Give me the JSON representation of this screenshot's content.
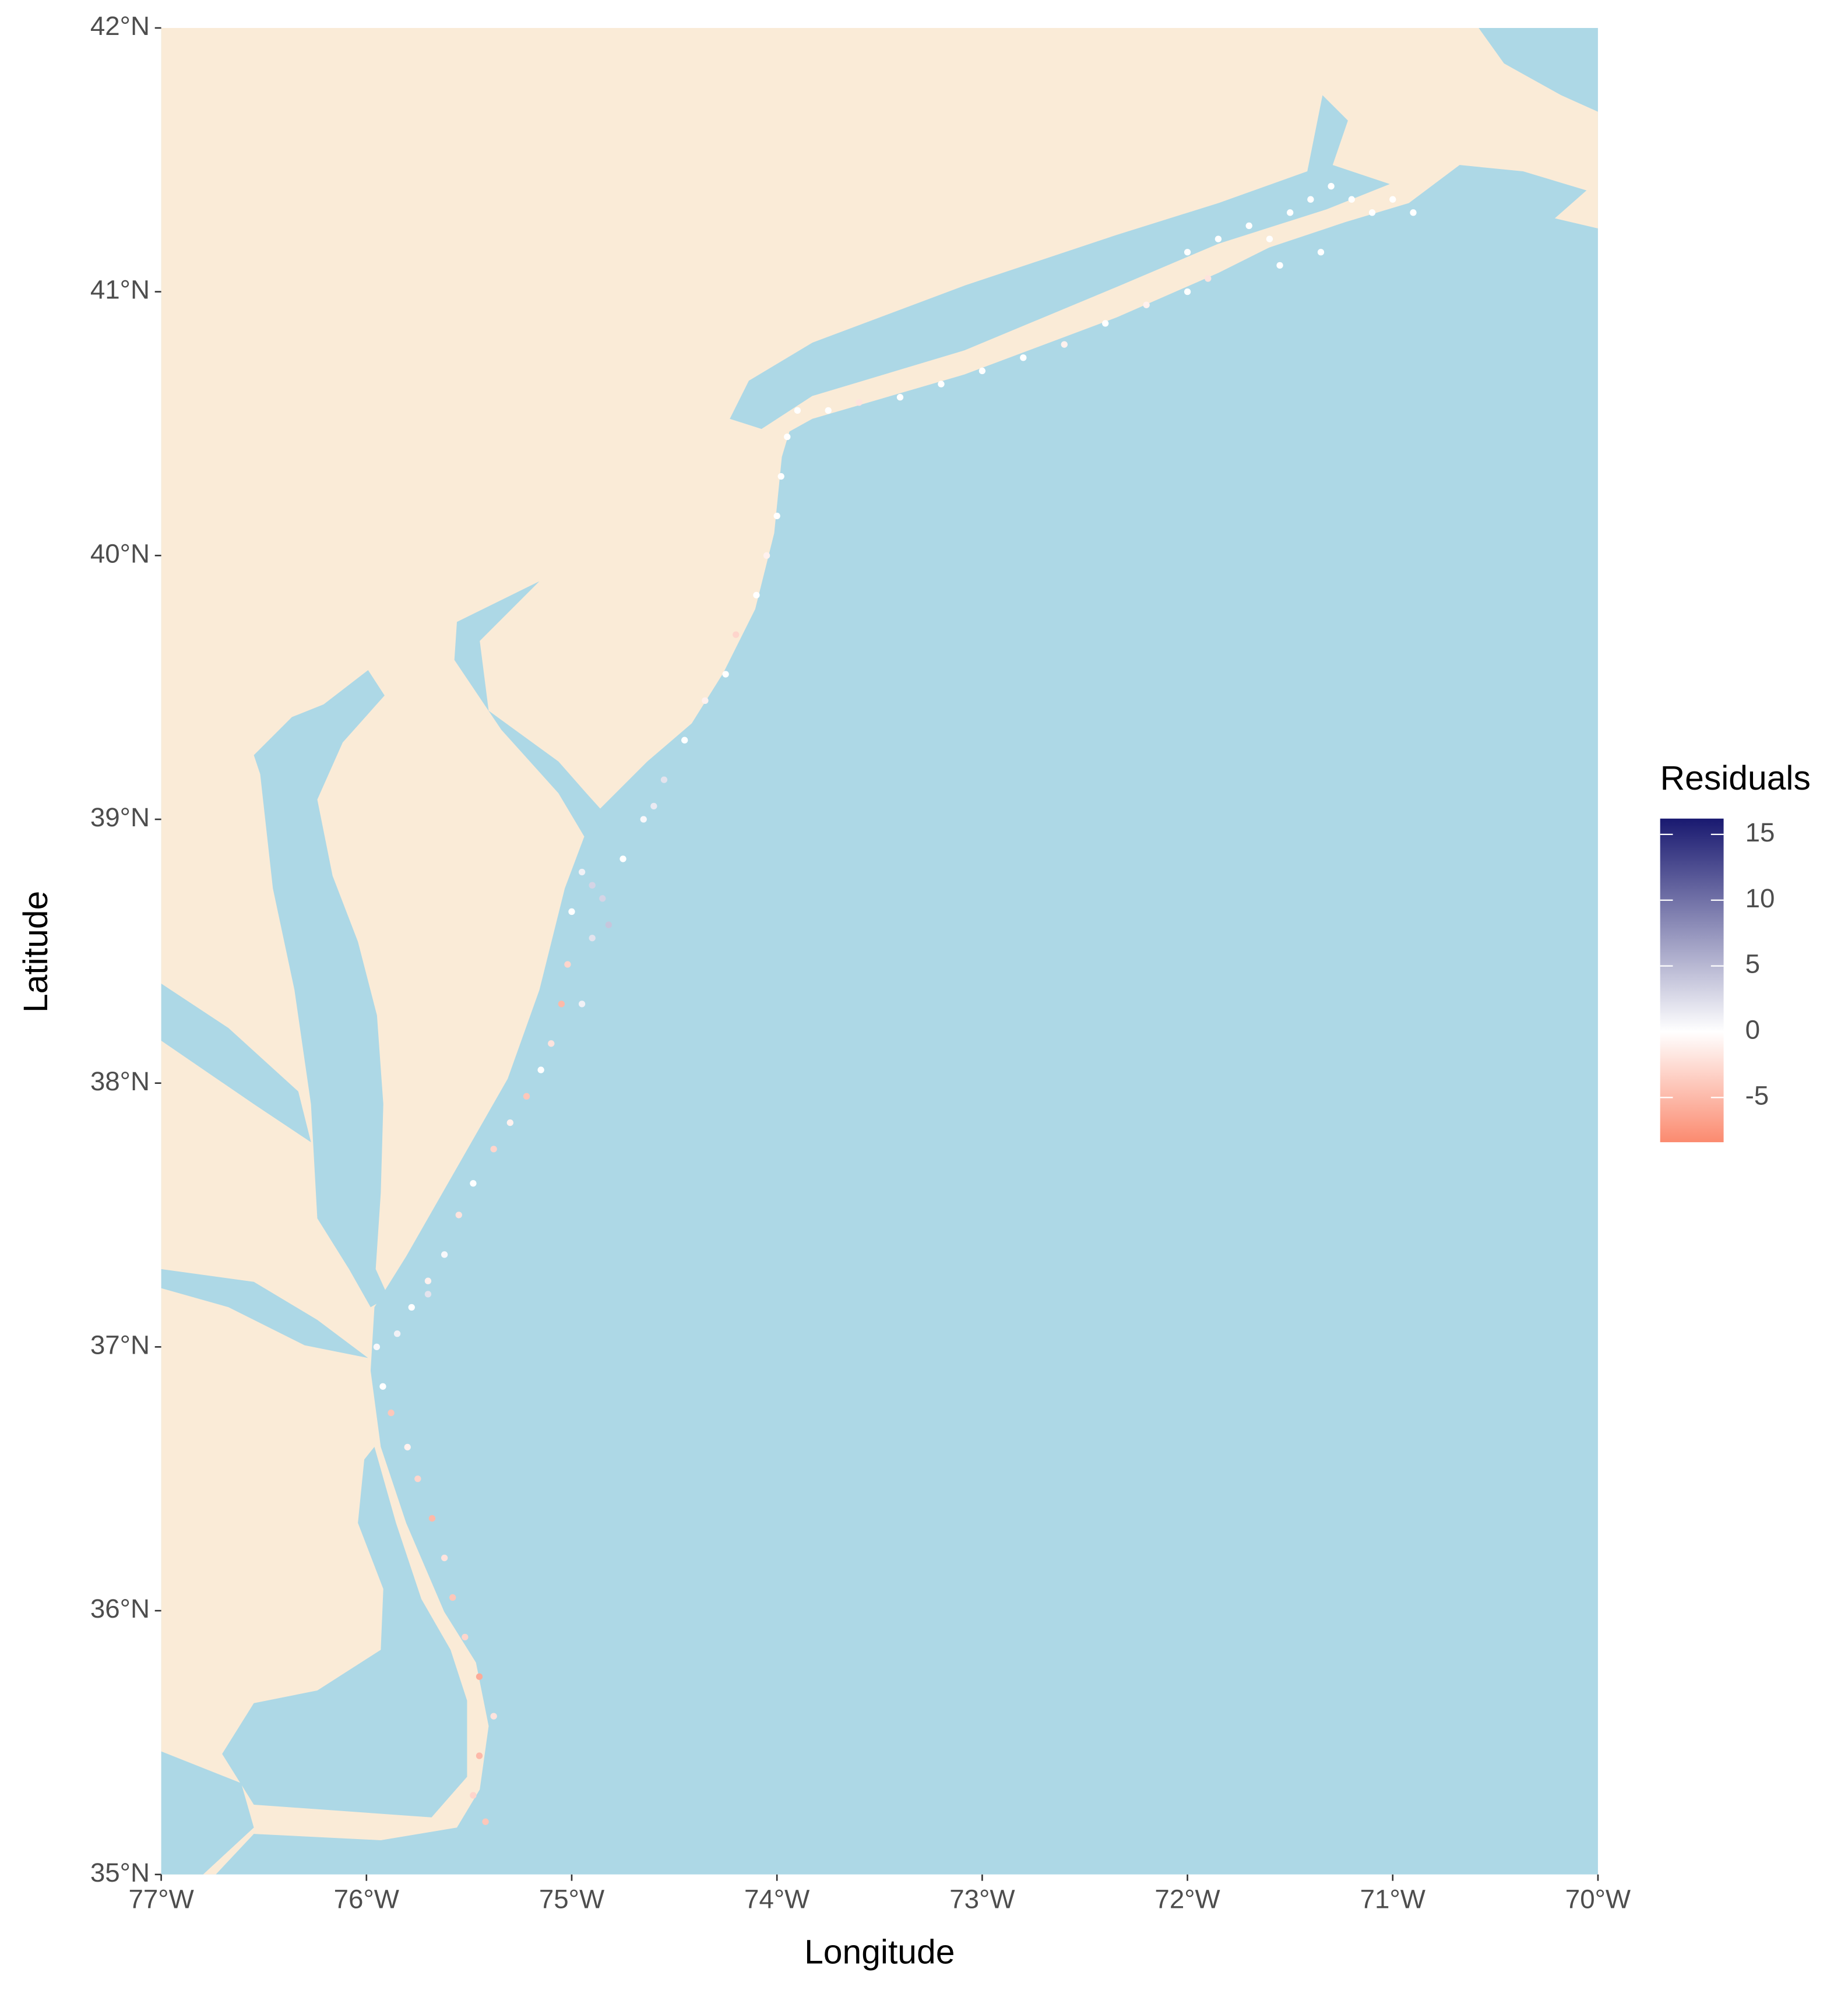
{
  "chart_data": {
    "type": "scatter",
    "xlabel": "Longitude",
    "ylabel": "Latitude",
    "legend_title": "Residuals",
    "xlim": [
      -77,
      -70
    ],
    "ylim": [
      35,
      42
    ],
    "xticks": [
      {
        "value": -77,
        "label": "77°W"
      },
      {
        "value": -76,
        "label": "76°W"
      },
      {
        "value": -75,
        "label": "75°W"
      },
      {
        "value": -74,
        "label": "74°W"
      },
      {
        "value": -73,
        "label": "73°W"
      },
      {
        "value": -72,
        "label": "72°W"
      },
      {
        "value": -71,
        "label": "71°W"
      },
      {
        "value": -70,
        "label": "70°W"
      }
    ],
    "yticks": [
      {
        "value": 35,
        "label": "35°N"
      },
      {
        "value": 36,
        "label": "36°N"
      },
      {
        "value": 37,
        "label": "37°N"
      },
      {
        "value": 38,
        "label": "38°N"
      },
      {
        "value": 39,
        "label": "39°N"
      },
      {
        "value": 40,
        "label": "40°N"
      },
      {
        "value": 41,
        "label": "41°N"
      },
      {
        "value": 42,
        "label": "42°N"
      }
    ],
    "grid": false,
    "color_low": "#fb8a6f",
    "color_mid": "#ffffff",
    "color_high": "#191970",
    "color_midpoint": 0,
    "color_lim": [
      -8.4,
      16.2
    ],
    "color_ticks": [
      15,
      10,
      5,
      0,
      -5
    ],
    "x": [
      -75.42,
      -75.48,
      -75.45,
      -75.38,
      -75.45,
      -75.52,
      -75.58,
      -75.62,
      -75.68,
      -75.75,
      -75.8,
      -75.88,
      -75.92,
      -75.95,
      -75.85,
      -75.78,
      -75.7,
      -75.62,
      -75.55,
      -75.48,
      -75.38,
      -75.3,
      -75.22,
      -75.15,
      -75.1,
      -75.05,
      -74.95,
      -75.02,
      -74.9,
      -75.0,
      -74.85,
      -74.95,
      -74.75,
      -74.65,
      -74.55,
      -74.45,
      -74.35,
      -74.25,
      -74.2,
      -74.1,
      -74.05,
      -74.0,
      -73.98,
      -73.95,
      -73.9,
      -73.75,
      -73.6,
      -73.4,
      -73.2,
      -73.0,
      -72.8,
      -72.6,
      -72.4,
      -72.2,
      -72.0,
      -71.9,
      -72.0,
      -71.85,
      -71.7,
      -71.6,
      -71.5,
      -71.4,
      -71.3,
      -71.2,
      -71.1,
      -71.0,
      -70.9,
      -71.55,
      -71.35,
      -74.82,
      -74.9,
      -75.7,
      -74.6
    ],
    "y": [
      35.2,
      35.3,
      35.45,
      35.6,
      35.75,
      35.9,
      36.05,
      36.2,
      36.35,
      36.5,
      36.62,
      36.75,
      36.85,
      37.0,
      37.05,
      37.15,
      37.25,
      37.35,
      37.5,
      37.62,
      37.75,
      37.85,
      37.95,
      38.05,
      38.15,
      38.3,
      38.3,
      38.45,
      38.55,
      38.65,
      38.7,
      38.8,
      38.85,
      39.0,
      39.15,
      39.3,
      39.45,
      39.55,
      39.7,
      39.85,
      40.0,
      40.15,
      40.3,
      40.45,
      40.55,
      40.55,
      40.58,
      40.6,
      40.65,
      40.7,
      40.75,
      40.8,
      40.88,
      40.95,
      41.0,
      41.05,
      41.15,
      41.2,
      41.25,
      41.2,
      41.3,
      41.35,
      41.4,
      41.35,
      41.3,
      41.35,
      41.3,
      41.1,
      41.15,
      38.6,
      38.75,
      37.2,
      39.05
    ],
    "color_values": [
      -4,
      -3,
      -5,
      -2,
      -6,
      -3,
      -4,
      -2,
      -5,
      -3,
      -1,
      -4,
      0,
      0.5,
      1,
      0,
      -1,
      0.5,
      -2,
      0,
      -3,
      -1,
      -4,
      0,
      -2,
      -5,
      1,
      -3,
      2,
      0,
      3,
      1,
      0,
      0.5,
      2,
      0,
      -1,
      0,
      -3,
      0,
      -1,
      0,
      0,
      0,
      0,
      0,
      -2,
      0,
      0,
      0,
      0,
      -1,
      0,
      -1,
      0,
      -2,
      0,
      0,
      0,
      0,
      0,
      0,
      0,
      0,
      0,
      0,
      0,
      0,
      0,
      4,
      3,
      2,
      1.5
    ]
  }
}
